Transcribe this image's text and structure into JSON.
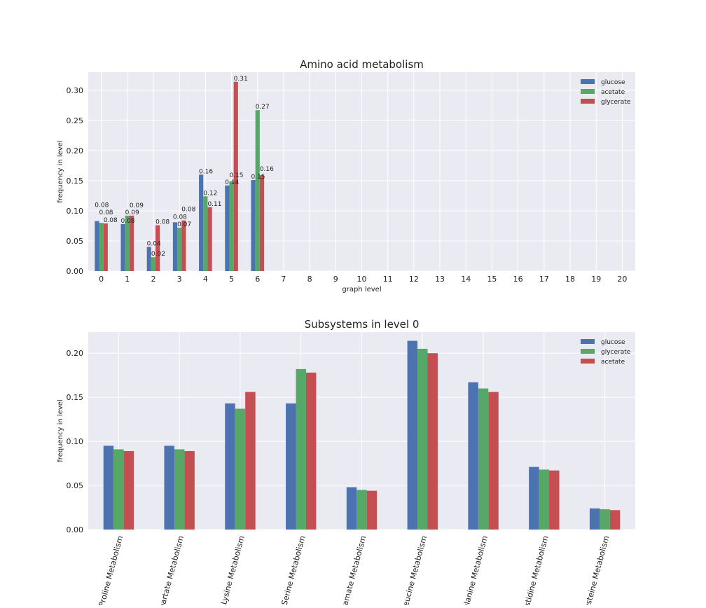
{
  "colors": {
    "background": "#eaeaf2",
    "grid": "#ffffff",
    "blue": "#4c72b0",
    "green": "#55a868",
    "red": "#c44e52"
  },
  "chart_data": [
    {
      "type": "bar",
      "title": "Amino acid metabolism",
      "xlabel": "graph level",
      "ylabel": "frequency in level",
      "categories": [
        "0",
        "1",
        "2",
        "3",
        "4",
        "5",
        "6",
        "7",
        "8",
        "9",
        "10",
        "11",
        "12",
        "13",
        "14",
        "15",
        "16",
        "17",
        "18",
        "19",
        "20"
      ],
      "ylim": [
        0,
        0.33
      ],
      "yticks": [
        "0.00",
        "0.05",
        "0.10",
        "0.15",
        "0.20",
        "0.25",
        "0.30"
      ],
      "grid": true,
      "legend_position": "top-right",
      "series": [
        {
          "name": "glucose",
          "color": "#4c72b0",
          "values": [
            0.083,
            0.078,
            0.04,
            0.081,
            0.16,
            0.142,
            0.151,
            0,
            0,
            0,
            0,
            0,
            0,
            0,
            0,
            0,
            0,
            0,
            0,
            0,
            0
          ],
          "labels": [
            "0.08",
            "0.08",
            "0.04",
            "0.08",
            "0.16",
            "0.14",
            "0.15"
          ]
        },
        {
          "name": "acetate",
          "color": "#55a868",
          "values": [
            0.08,
            0.092,
            0.023,
            0.072,
            0.124,
            0.149,
            0.267,
            0,
            0,
            0,
            0,
            0,
            0,
            0,
            0,
            0,
            0,
            0,
            0,
            0,
            0
          ],
          "labels": [
            "0.08",
            "0.09",
            "0.02",
            "0.07",
            "0.12",
            "0.15",
            "0.27"
          ]
        },
        {
          "name": "glycerate",
          "color": "#c44e52",
          "values": [
            0.079,
            0.092,
            0.076,
            0.084,
            0.106,
            0.314,
            0.159,
            0,
            0,
            0,
            0,
            0,
            0,
            0,
            0,
            0,
            0,
            0,
            0,
            0,
            0
          ],
          "labels": [
            "0.08",
            "0.09",
            "0.08",
            "0.08",
            "0.11",
            "0.31",
            "0.16"
          ]
        }
      ]
    },
    {
      "type": "bar",
      "title": "Subsystems in level 0",
      "xlabel": "",
      "ylabel": "frequency in level",
      "categories": [
        "Proline Metabolism",
        "partate Metabolism",
        "Lysine Metabolism",
        "Serine Metabolism",
        "tamate Metabolism",
        "leucine Metabolism",
        "alanine Metabolism",
        "istidine Metabolism",
        "ysteine Metabolism"
      ],
      "ylim": [
        0,
        0.224
      ],
      "yticks": [
        "0.00",
        "0.05",
        "0.10",
        "0.15",
        "0.20"
      ],
      "grid": true,
      "legend_position": "top-right",
      "series": [
        {
          "name": "glucose",
          "color": "#4c72b0",
          "values": [
            0.095,
            0.095,
            0.143,
            0.143,
            0.048,
            0.214,
            0.167,
            0.071,
            0.024
          ]
        },
        {
          "name": "glycerate",
          "color": "#55a868",
          "values": [
            0.091,
            0.091,
            0.137,
            0.182,
            0.045,
            0.205,
            0.16,
            0.068,
            0.023
          ]
        },
        {
          "name": "acetate",
          "color": "#c44e52",
          "values": [
            0.089,
            0.089,
            0.156,
            0.178,
            0.044,
            0.2,
            0.156,
            0.067,
            0.022
          ]
        }
      ]
    }
  ]
}
